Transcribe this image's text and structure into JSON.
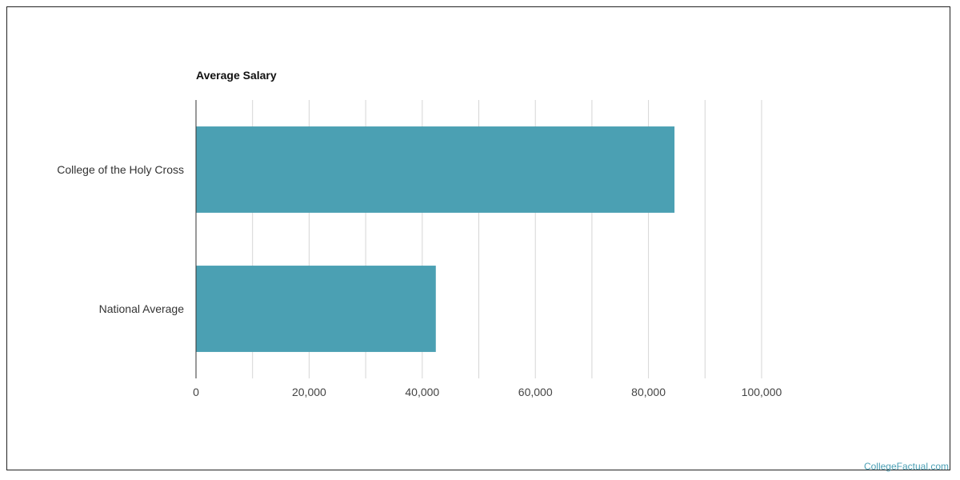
{
  "chart_data": {
    "type": "bar",
    "orientation": "horizontal",
    "title": "Average Salary",
    "categories": [
      "College of the Holy Cross",
      "National Average"
    ],
    "values": [
      84600,
      42400
    ],
    "xlim": [
      0,
      100000
    ],
    "x_ticks": [
      "0",
      "20,000",
      "40,000",
      "60,000",
      "80,000",
      "100,000"
    ],
    "x_tick_values": [
      0,
      20000,
      40000,
      60000,
      80000,
      100000
    ],
    "minor_gridlines": [
      10000,
      30000,
      50000,
      70000,
      90000
    ],
    "grid": true,
    "bar_color": "#4ba0b3",
    "xlabel": "",
    "ylabel": ""
  },
  "branding": {
    "label": "CollegeFactual.com",
    "color": "#4a9fb4"
  }
}
